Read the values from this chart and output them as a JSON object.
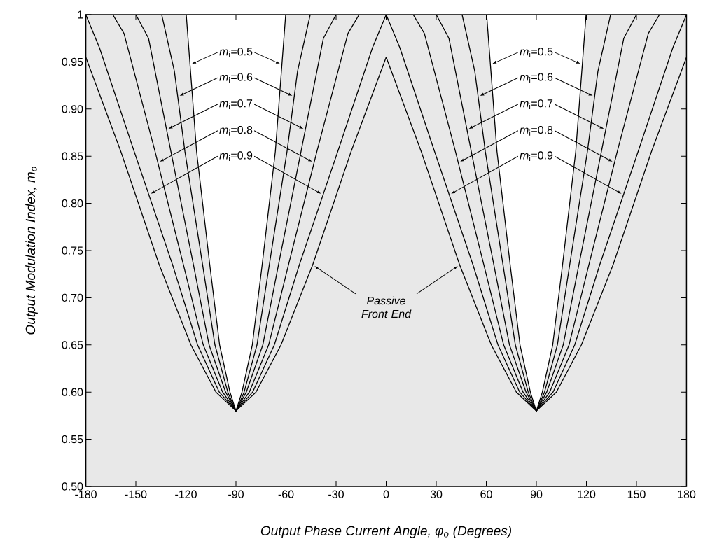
{
  "chart_data": {
    "type": "line",
    "xlabel": "Output Phase Current Angle, φ$_{o}$ (Degrees)",
    "ylabel": "Output Modulation Index, m$_{o}$",
    "xlim": [
      -180,
      180
    ],
    "ylim": [
      0.5,
      1
    ],
    "xticks": [
      -180,
      -150,
      -120,
      -90,
      -60,
      -30,
      0,
      30,
      60,
      90,
      120,
      150,
      180
    ],
    "yticks": [
      {
        "value": 0.5,
        "label": "0.50"
      },
      0.55,
      {
        "value": 0.6,
        "label": "0.60"
      },
      0.65,
      {
        "value": 0.7,
        "label": "0.70"
      },
      0.75,
      {
        "value": 0.8,
        "label": "0.80"
      },
      0.85,
      {
        "value": 0.9,
        "label": "0.90"
      },
      0.95,
      1
    ],
    "series": [
      {
        "type": "area",
        "color": "#e8e8e8",
        "x": [
          -180,
          -119.8,
          -113.6,
          -105.7,
          -99.8,
          -93.6,
          -90,
          -86.4,
          -80.2,
          -74.3,
          -66.4,
          -60.2,
          60.2,
          66.4,
          74.3,
          80.2,
          86.4,
          90,
          93.6,
          99.8,
          105.7,
          113.6,
          119.8,
          180
        ],
        "values": [
          1,
          1,
          0.855,
          0.735,
          0.65,
          0.6,
          0.58,
          0.6,
          0.65,
          0.735,
          0.855,
          1,
          1,
          0.855,
          0.735,
          0.65,
          0.6,
          0.58,
          0.6,
          0.65,
          0.735,
          0.855,
          1,
          1
        ]
      },
      {
        "color": "#000000",
        "x": [
          -134.5,
          -126.9,
          -120.6,
          -110,
          -102.6,
          -94.9,
          -90,
          -85.1,
          -77.4,
          -70,
          -59.4,
          -53.1,
          -45.5,
          0,
          45.5,
          53.1,
          59.4,
          70,
          77.4,
          85.1,
          90,
          94.9,
          102.6,
          110,
          120.6,
          126.9,
          134.5
        ],
        "values": [
          1,
          0.94,
          0.855,
          0.735,
          0.65,
          0.6,
          0.58,
          0.6,
          0.65,
          0.735,
          0.855,
          0.94,
          1,
          null,
          1,
          0.94,
          0.855,
          0.735,
          0.65,
          0.6,
          0.58,
          0.6,
          0.65,
          0.735,
          0.855,
          0.94,
          1
        ]
      },
      {
        "color": "#000000",
        "x": [
          -150,
          -142.4,
          -129,
          -115.5,
          -106.1,
          -96.2,
          -90,
          -83.8,
          -73.9,
          -64.5,
          -51,
          -37.6,
          -30,
          0,
          30,
          37.6,
          51,
          64.5,
          73.9,
          83.8,
          90,
          96.2,
          106.1,
          115.5,
          129,
          142.4,
          150
        ],
        "values": [
          1,
          0.975,
          0.855,
          0.735,
          0.65,
          0.6,
          0.58,
          0.6,
          0.65,
          0.735,
          0.855,
          0.975,
          1,
          null,
          1,
          0.975,
          0.855,
          0.735,
          0.65,
          0.6,
          0.58,
          0.6,
          0.65,
          0.735,
          0.855,
          0.975,
          1
        ]
      },
      {
        "color": "#000000",
        "x": [
          -163.8,
          -157.1,
          -138.5,
          -121.5,
          -109.6,
          -98,
          -90,
          -82,
          -70.4,
          -58.5,
          -41.5,
          -22.9,
          -16.2,
          0,
          16.2,
          22.9,
          41.5,
          58.5,
          70.4,
          82,
          90,
          98,
          109.6,
          121.5,
          138.5,
          157.1,
          163.8
        ],
        "values": [
          1,
          0.98,
          0.855,
          0.735,
          0.65,
          0.6,
          0.58,
          0.6,
          0.65,
          0.735,
          0.855,
          0.98,
          1,
          null,
          1,
          0.98,
          0.855,
          0.735,
          0.65,
          0.6,
          0.58,
          0.6,
          0.65,
          0.735,
          0.855,
          0.98,
          1
        ]
      },
      {
        "color": "#000000",
        "x": [
          -180,
          -171.8,
          -151,
          -128,
          -113,
          -100,
          -90,
          -80,
          -67,
          -52,
          -29,
          -8.2,
          0,
          8.2,
          29,
          52,
          67,
          80,
          90,
          100,
          113,
          128,
          151,
          171.8,
          180
        ],
        "values": [
          1,
          0.965,
          0.855,
          0.735,
          0.65,
          0.6,
          0.58,
          0.6,
          0.65,
          0.735,
          0.855,
          0.965,
          1,
          0.965,
          0.855,
          0.735,
          0.65,
          0.6,
          0.58,
          0.6,
          0.65,
          0.735,
          0.855,
          0.965,
          1
        ]
      },
      {
        "color": "#000000",
        "x": [
          -180,
          -159,
          -136,
          -117,
          -102,
          -90,
          -78,
          -63,
          -44,
          -21,
          0,
          21,
          44,
          63,
          78,
          90,
          102,
          117,
          136,
          159,
          180
        ],
        "values": [
          0.955,
          0.855,
          0.735,
          0.65,
          0.6,
          0.58,
          0.6,
          0.65,
          0.735,
          0.855,
          0.955,
          0.855,
          0.735,
          0.65,
          0.6,
          0.58,
          0.6,
          0.65,
          0.735,
          0.855,
          0.955
        ]
      }
    ],
    "annotations": [
      {
        "text": "*m*$_{i}$=0.5",
        "x": -117.5,
        "y": 0.947
      },
      {
        "text": "*m*$_{i}$=0.6",
        "x": -124.9,
        "y": 0.913
      },
      {
        "text": "*m*$_{i}$=0.7",
        "x": -131.6,
        "y": 0.878
      },
      {
        "text": "*m*$_{i}$=0.8",
        "x": -136.8,
        "y": 0.843
      },
      {
        "text": "*m*$_{i}$=0.9",
        "x": -142.2,
        "y": 0.809
      },
      {
        "text": "*m*$_{i}$=0.5",
        "x": 62.5,
        "y": 0.947
      },
      {
        "text": "*m*$_{i}$=0.6",
        "x": 55.1,
        "y": 0.913
      },
      {
        "text": "*m*$_{i}$=0.7",
        "x": 48.4,
        "y": 0.878
      },
      {
        "text": "*m*$_{i}$=0.8",
        "x": 43.2,
        "y": 0.843
      },
      {
        "text": "*m*$_{i}$=0.9",
        "x": 37.8,
        "y": 0.809
      },
      {
        "text": "Passive Front End",
        "x": -44,
        "y": 0.735
      }
    ]
  }
}
